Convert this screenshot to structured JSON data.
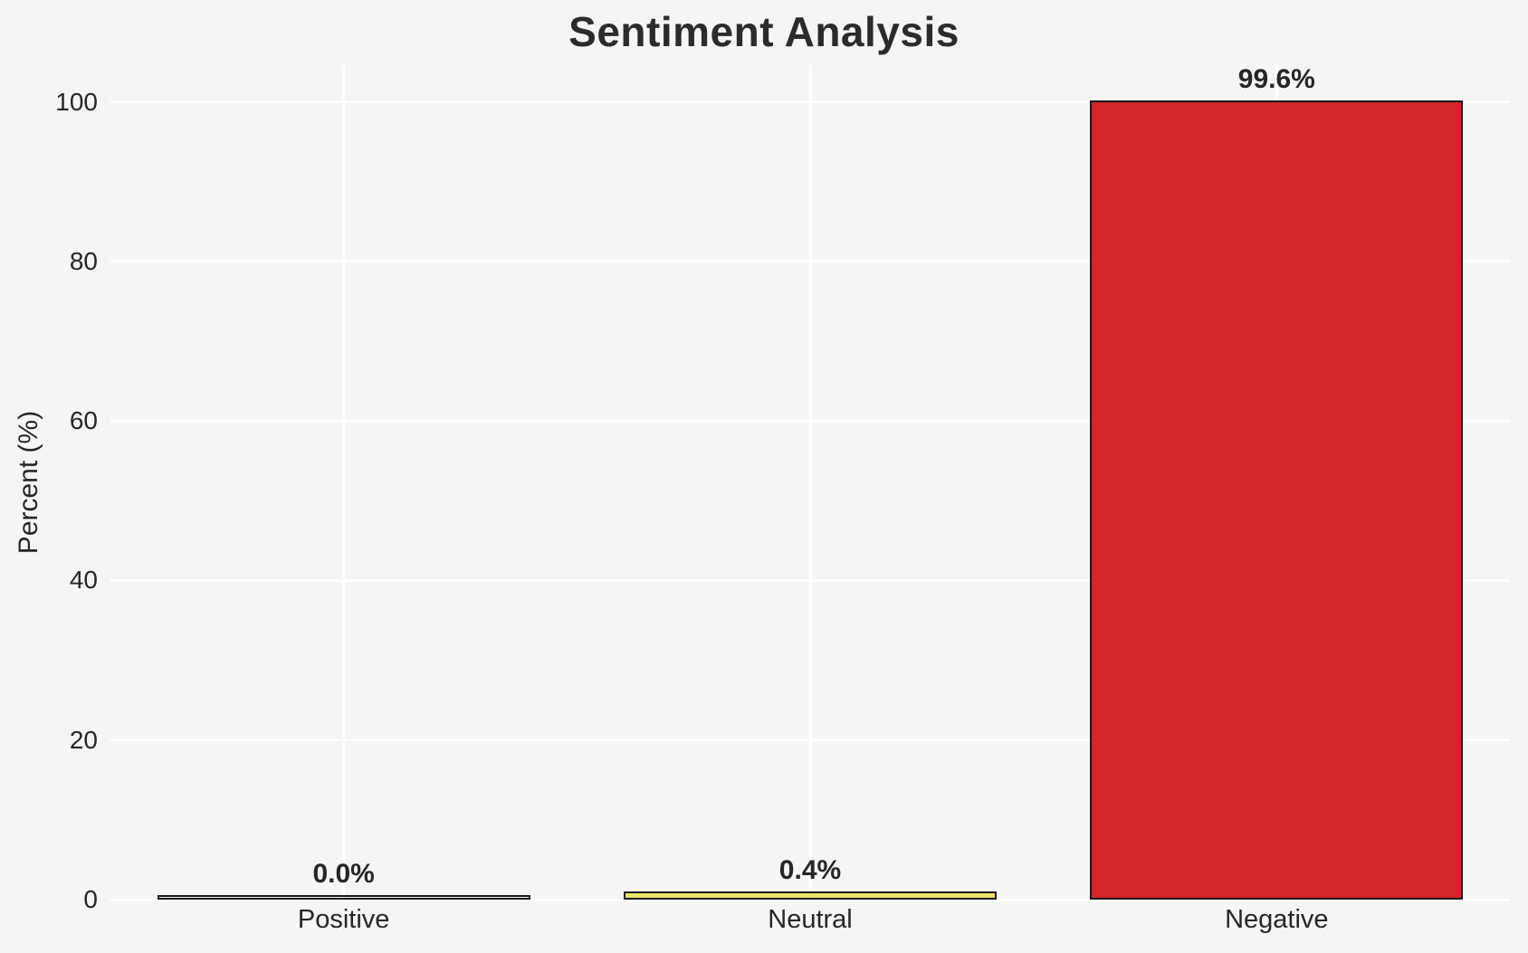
{
  "page": {
    "background_color": "#f5f5f6"
  },
  "chart_data": {
    "type": "bar",
    "title": "Sentiment Analysis",
    "xlabel": "",
    "ylabel": "Percent (%)",
    "categories": [
      "Positive",
      "Neutral",
      "Negative"
    ],
    "values": [
      0.0,
      0.4,
      99.6
    ],
    "value_labels": [
      "0.0%",
      "0.4%",
      "99.6%"
    ],
    "bar_fills": [
      null,
      "#e9e468",
      "#d2262b"
    ],
    "bar_edge_color": "#1a1a1a",
    "yticks": [
      0,
      20,
      40,
      60,
      80,
      100
    ],
    "ylim": [
      0,
      104.6
    ],
    "grid": true,
    "grid_color": "#ffffff",
    "background_color": "#f5f5f6",
    "text_color": "#262626",
    "legend_position": "none"
  }
}
